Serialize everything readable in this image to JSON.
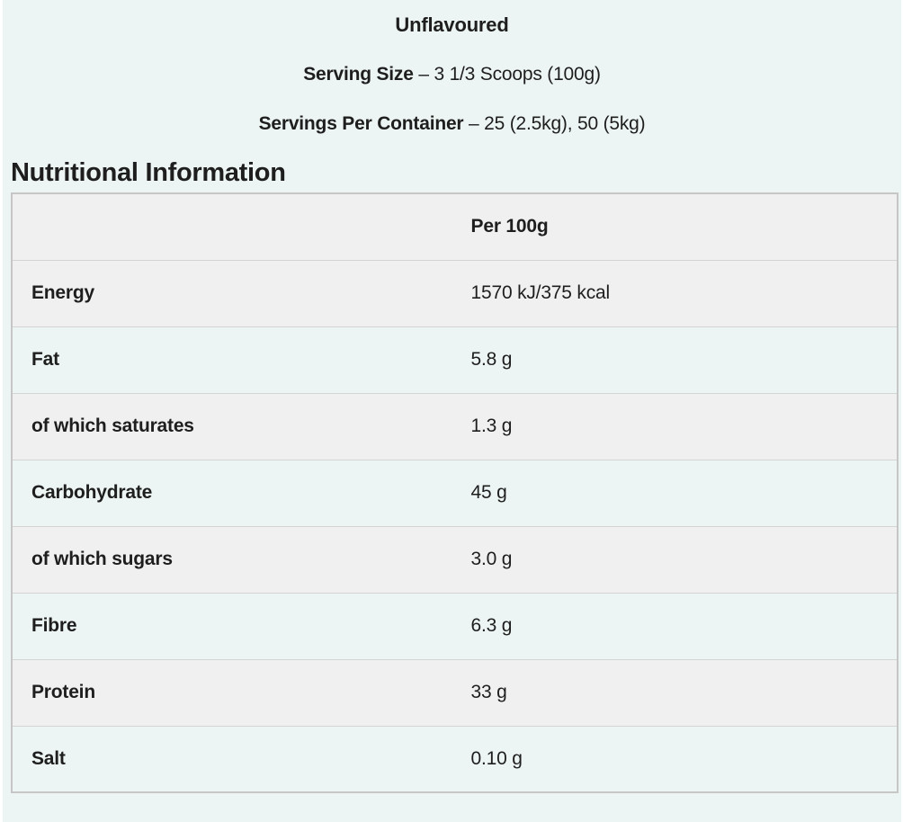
{
  "colors": {
    "page_background": "#ffffff",
    "panel_background": "#ecf5f3",
    "row_shade": "#f0f0f0",
    "table_border": "#c6c6c6",
    "row_divider": "#d4d4d4",
    "text": "#1e1e1e"
  },
  "product": {
    "flavour": "Unflavoured",
    "serving_size": {
      "label": "Serving Size",
      "dash": "–",
      "value": "3 1/3 Scoops (100g)"
    },
    "servings_per_container": {
      "label": "Servings Per Container",
      "dash": "–",
      "value": "25 (2.5kg), 50 (5kg)"
    }
  },
  "nutrition": {
    "heading": "Nutritional Information",
    "column_header": "Per 100g",
    "rows": [
      {
        "label": "Energy",
        "value": "1570 kJ/375 kcal"
      },
      {
        "label": "Fat",
        "value": "5.8 g"
      },
      {
        "label": "of which saturates",
        "value": "1.3 g"
      },
      {
        "label": "Carbohydrate",
        "value": "45 g"
      },
      {
        "label": "of which sugars",
        "value": "3.0 g"
      },
      {
        "label": "Fibre",
        "value": "6.3 g"
      },
      {
        "label": "Protein",
        "value": "33 g"
      },
      {
        "label": "Salt",
        "value": "0.10 g"
      }
    ]
  }
}
